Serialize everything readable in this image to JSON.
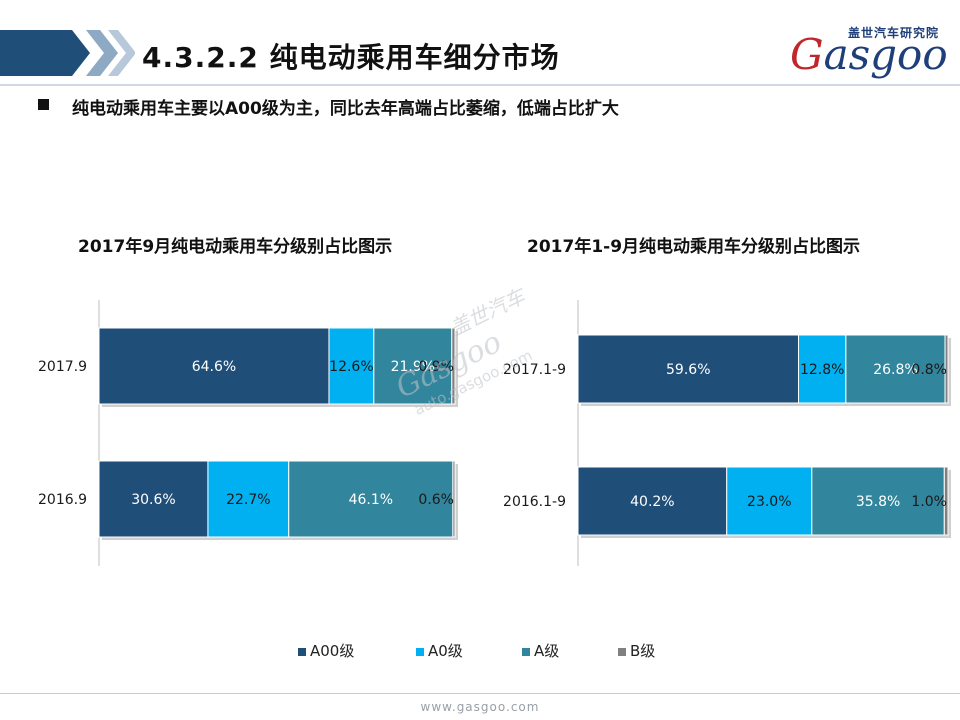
{
  "header": {
    "title": "4.3.2.2 纯电动乘用车细分市场",
    "logo_cn": "盖世汽车研究院",
    "logo_en": "Gasgoo"
  },
  "subtitle": "纯电动乘用车主要以A00级为主，同比去年高端占比萎缩，低端占比扩大",
  "colors": {
    "A00": "#1f4e79",
    "A0": "#00b0f0",
    "A": "#31859c",
    "B": "#808080"
  },
  "chart_data": [
    {
      "type": "bar",
      "orientation": "horizontal",
      "stacked": true,
      "title": "2017年9月纯电动乘用车分级别占比图示",
      "categories": [
        "2017.9",
        "2016.9"
      ],
      "series": [
        {
          "name": "A00级",
          "values": [
            64.6,
            30.6
          ],
          "labels": [
            "64.6%",
            "30.6%"
          ]
        },
        {
          "name": "A0级",
          "values": [
            12.6,
            22.7
          ],
          "labels": [
            "12.6%",
            "22.7%"
          ]
        },
        {
          "name": "A级",
          "values": [
            21.9,
            46.1
          ],
          "labels": [
            "21.9%",
            "46.1%"
          ]
        },
        {
          "name": "B级",
          "values": [
            0.9,
            0.6
          ],
          "labels": [
            "0.9%",
            "0.6%"
          ]
        }
      ],
      "xlim": [
        0,
        100
      ]
    },
    {
      "type": "bar",
      "orientation": "horizontal",
      "stacked": true,
      "title": "2017年1-9月纯电动乘用车分级别占比图示",
      "categories": [
        "2017.1-9",
        "2016.1-9"
      ],
      "series": [
        {
          "name": "A00级",
          "values": [
            59.6,
            40.2
          ],
          "labels": [
            "59.6%",
            "40.2%"
          ]
        },
        {
          "name": "A0级",
          "values": [
            12.8,
            23.0
          ],
          "labels": [
            "12.8%",
            "23.0%"
          ]
        },
        {
          "name": "A级",
          "values": [
            26.8,
            35.8
          ],
          "labels": [
            "26.8%",
            "35.8%"
          ]
        },
        {
          "name": "B级",
          "values": [
            0.8,
            1.0
          ],
          "labels": [
            "0.8%",
            "1.0%"
          ]
        }
      ],
      "xlim": [
        0,
        100
      ]
    }
  ],
  "legend": [
    "A00级",
    "A0级",
    "A级",
    "B级"
  ],
  "watermark": {
    "en": "Gasgoo",
    "cn": "盖世汽车",
    "url": "auto.gasgoo.com"
  },
  "footer": "www.gasgoo.com"
}
